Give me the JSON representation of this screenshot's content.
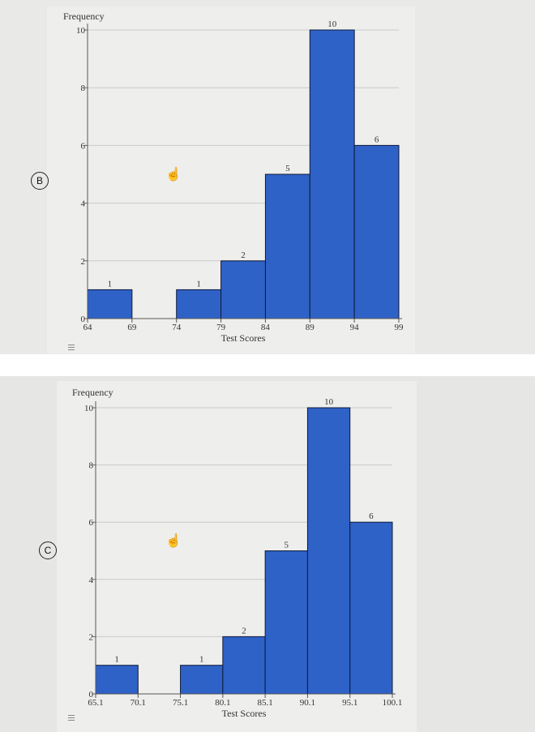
{
  "options": [
    {
      "label": "B"
    },
    {
      "label": "C"
    }
  ],
  "chart_data": [
    {
      "type": "bar",
      "ylabel": "Frequency",
      "xlabel": "Test Scores",
      "bin_edges": [
        64,
        69,
        74,
        79,
        84,
        89,
        94,
        99
      ],
      "tick_labels": [
        "64",
        "69",
        "74",
        "79",
        "84",
        "89",
        "94",
        "99"
      ],
      "values": [
        1,
        0,
        1,
        2,
        5,
        10,
        6
      ],
      "value_labels": [
        "1",
        "",
        "1",
        "2",
        "5",
        "10",
        "6"
      ],
      "ylim": [
        0,
        10
      ],
      "yticks": [
        "0",
        "2",
        "4",
        "6",
        "8",
        "10"
      ],
      "bar_color": "#2f62c7",
      "grid": true
    },
    {
      "type": "bar",
      "ylabel": "Frequency",
      "xlabel": "Test Scores",
      "bin_edges": [
        65.1,
        70.1,
        75.1,
        80.1,
        85.1,
        90.1,
        95.1,
        100.1
      ],
      "tick_labels": [
        "65.1",
        "70.1",
        "75.1",
        "80.1",
        "85.1",
        "90.1",
        "95.1",
        "100.1"
      ],
      "values": [
        1,
        0,
        1,
        2,
        5,
        10,
        6
      ],
      "value_labels": [
        "1",
        "",
        "1",
        "2",
        "5",
        "10",
        "6"
      ],
      "ylim": [
        0,
        10
      ],
      "yticks": [
        "0",
        "2",
        "4",
        "6",
        "8",
        "10"
      ],
      "bar_color": "#2f62c7",
      "grid": true
    }
  ]
}
